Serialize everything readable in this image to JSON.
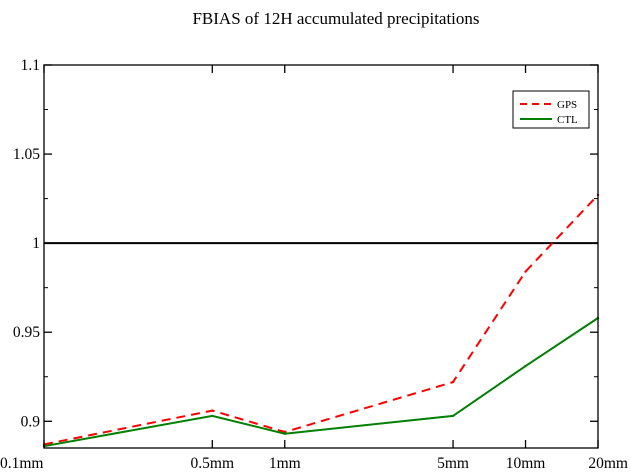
{
  "chart_data": {
    "type": "line",
    "title": "FBIAS of 12H accumulated precipitations",
    "xlabel": "",
    "ylabel": "",
    "x_scale": "log",
    "x": [
      0.1,
      0.5,
      1,
      5,
      10,
      20
    ],
    "x_tick_labels": [
      "0.1mm",
      "0.5mm",
      "1mm",
      "5mm",
      "10mm",
      "20mm"
    ],
    "y_ticks": [
      0.9,
      0.95,
      1,
      1.05,
      1.1
    ],
    "y_tick_labels": [
      "0.9",
      "0.95",
      "1",
      "1.05",
      "1.1"
    ],
    "ylim": [
      0.885,
      1.1
    ],
    "grid": false,
    "legend_placement": "top-right",
    "reference_line": 1,
    "series": [
      {
        "name": "GPS",
        "color": "#ff0000",
        "dash": "dashed",
        "values": [
          0.887,
          0.906,
          0.894,
          0.922,
          0.984,
          1.027
        ]
      },
      {
        "name": "CTL",
        "color": "#008000",
        "dash": "solid",
        "values": [
          0.886,
          0.903,
          0.893,
          0.903,
          0.931,
          0.958
        ]
      }
    ]
  }
}
